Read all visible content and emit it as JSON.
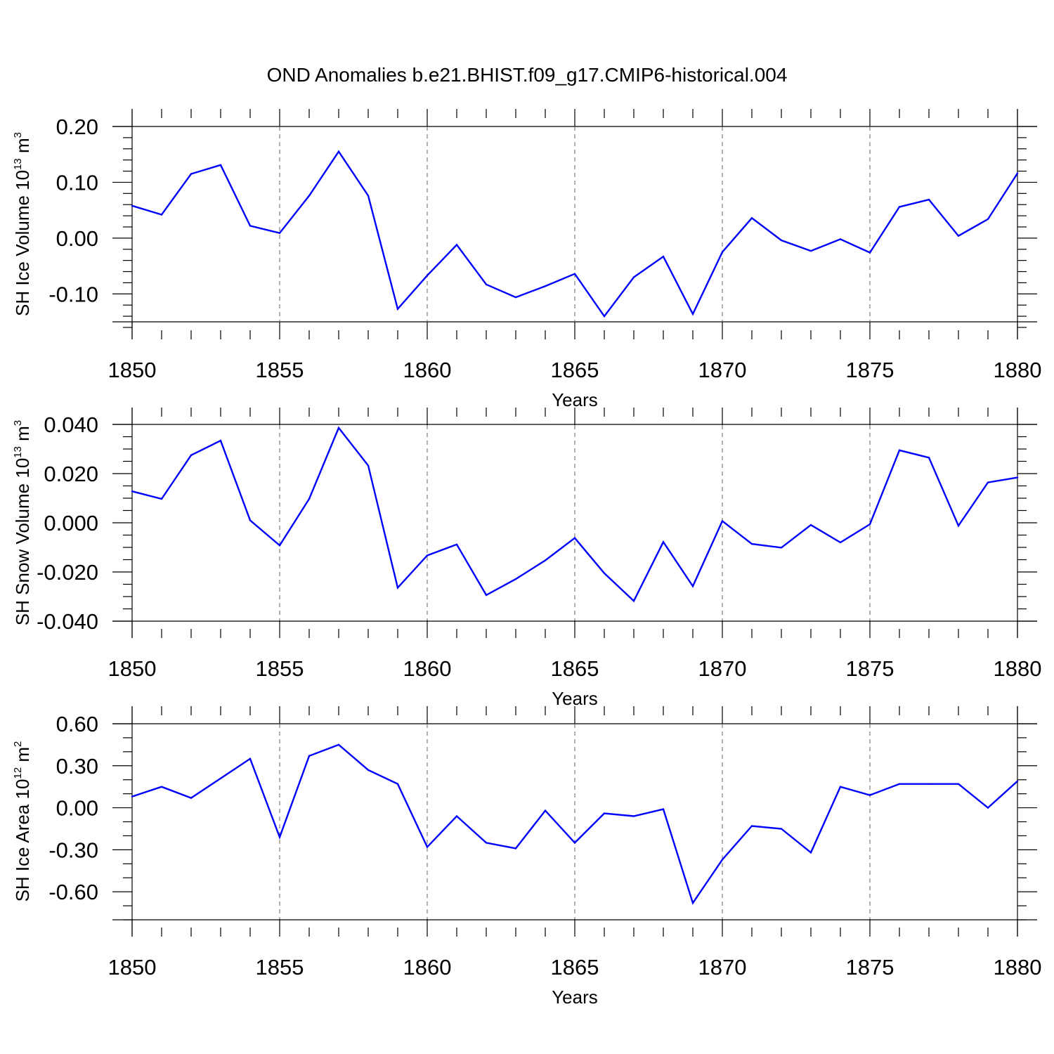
{
  "title": "OND Anomalies b.e21.BHIST.f09_g17.CMIP6-historical.004",
  "line_color": "#0000ff",
  "chart_data": [
    {
      "type": "line",
      "ylabel_prefix": "SH Ice Volume 10",
      "ylabel_exp": "13",
      "ylabel_suffix": " m",
      "ylabel_unit_exp": "3",
      "xlabel": "Years",
      "xlim": [
        1850,
        1880
      ],
      "ylim": [
        -0.15,
        0.2
      ],
      "grid": "vertical dashed at major ticks",
      "x_ticks": [
        "1850",
        "1855",
        "1860",
        "1865",
        "1870",
        "1875",
        "1880"
      ],
      "y_ticks": [
        {
          "value": 0.2,
          "label": "0.20"
        },
        {
          "value": 0.1,
          "label": "0.10"
        },
        {
          "value": 0.0,
          "label": "0.00"
        },
        {
          "value": -0.1,
          "label": "-0.10"
        }
      ],
      "y_minor_step": 0.02,
      "x": [
        1850,
        1851,
        1852,
        1853,
        1854,
        1855,
        1856,
        1857,
        1858,
        1859,
        1860,
        1861,
        1862,
        1863,
        1864,
        1865,
        1866,
        1867,
        1868,
        1869,
        1870,
        1871,
        1872,
        1873,
        1874,
        1875,
        1876,
        1877,
        1878,
        1879,
        1880
      ],
      "values": [
        0.058,
        0.042,
        0.115,
        0.131,
        0.022,
        0.009,
        0.076,
        0.155,
        0.076,
        -0.127,
        -0.067,
        -0.012,
        -0.083,
        -0.106,
        -0.086,
        -0.064,
        -0.14,
        -0.07,
        -0.033,
        -0.136,
        -0.025,
        0.036,
        -0.004,
        -0.023,
        -0.002,
        -0.026,
        0.056,
        0.069,
        0.004,
        0.034,
        0.116
      ]
    },
    {
      "type": "line",
      "ylabel_prefix": "SH Snow Volume 10",
      "ylabel_exp": "13",
      "ylabel_suffix": " m",
      "ylabel_unit_exp": "3",
      "xlabel": "Years",
      "xlim": [
        1850,
        1880
      ],
      "ylim": [
        -0.04,
        0.04
      ],
      "grid": "vertical dashed at major ticks",
      "x_ticks": [
        "1850",
        "1855",
        "1860",
        "1865",
        "1870",
        "1875",
        "1880"
      ],
      "y_ticks": [
        {
          "value": 0.04,
          "label": "0.040"
        },
        {
          "value": 0.02,
          "label": "0.020"
        },
        {
          "value": 0.0,
          "label": "0.000"
        },
        {
          "value": -0.02,
          "label": "-0.020"
        },
        {
          "value": -0.04,
          "label": "-0.040"
        }
      ],
      "y_minor_step": 0.005,
      "x": [
        1850,
        1851,
        1852,
        1853,
        1854,
        1855,
        1856,
        1857,
        1858,
        1859,
        1860,
        1861,
        1862,
        1863,
        1864,
        1865,
        1866,
        1867,
        1868,
        1869,
        1870,
        1871,
        1872,
        1873,
        1874,
        1875,
        1876,
        1877,
        1878,
        1879,
        1880
      ],
      "values": [
        0.0128,
        0.0097,
        0.0275,
        0.0334,
        0.001,
        -0.0092,
        0.0097,
        0.0386,
        0.0233,
        -0.0264,
        -0.0133,
        -0.0088,
        -0.0294,
        -0.0229,
        -0.0153,
        -0.0062,
        -0.0205,
        -0.0318,
        -0.0078,
        -0.0258,
        0.0007,
        -0.0086,
        -0.0101,
        -0.0009,
        -0.008,
        -0.0006,
        0.0295,
        0.0265,
        -0.0012,
        0.0164,
        0.0184
      ]
    },
    {
      "type": "line",
      "ylabel_prefix": "SH Ice Area 10",
      "ylabel_exp": "12",
      "ylabel_suffix": " m",
      "ylabel_unit_exp": "2",
      "xlabel": "Years",
      "xlim": [
        1850,
        1880
      ],
      "ylim": [
        -0.8,
        0.6
      ],
      "grid": "vertical dashed at major ticks",
      "x_ticks": [
        "1850",
        "1855",
        "1860",
        "1865",
        "1870",
        "1875",
        "1880"
      ],
      "y_ticks": [
        {
          "value": 0.6,
          "label": "0.60"
        },
        {
          "value": 0.3,
          "label": "0.30"
        },
        {
          "value": 0.0,
          "label": "0.00"
        },
        {
          "value": -0.3,
          "label": "-0.30"
        },
        {
          "value": -0.6,
          "label": "-0.60"
        }
      ],
      "y_minor_step": 0.1,
      "x": [
        1850,
        1851,
        1852,
        1853,
        1854,
        1855,
        1856,
        1857,
        1858,
        1859,
        1860,
        1861,
        1862,
        1863,
        1864,
        1865,
        1866,
        1867,
        1868,
        1869,
        1870,
        1871,
        1872,
        1873,
        1874,
        1875,
        1876,
        1877,
        1878,
        1879,
        1880
      ],
      "values": [
        0.08,
        0.15,
        0.07,
        0.21,
        0.35,
        -0.21,
        0.37,
        0.45,
        0.27,
        0.17,
        -0.28,
        -0.06,
        -0.25,
        -0.29,
        -0.02,
        -0.25,
        -0.04,
        -0.06,
        -0.01,
        -0.68,
        -0.37,
        -0.13,
        -0.15,
        -0.32,
        0.15,
        0.09,
        0.17,
        0.17,
        0.17,
        0.0,
        0.19
      ]
    }
  ]
}
